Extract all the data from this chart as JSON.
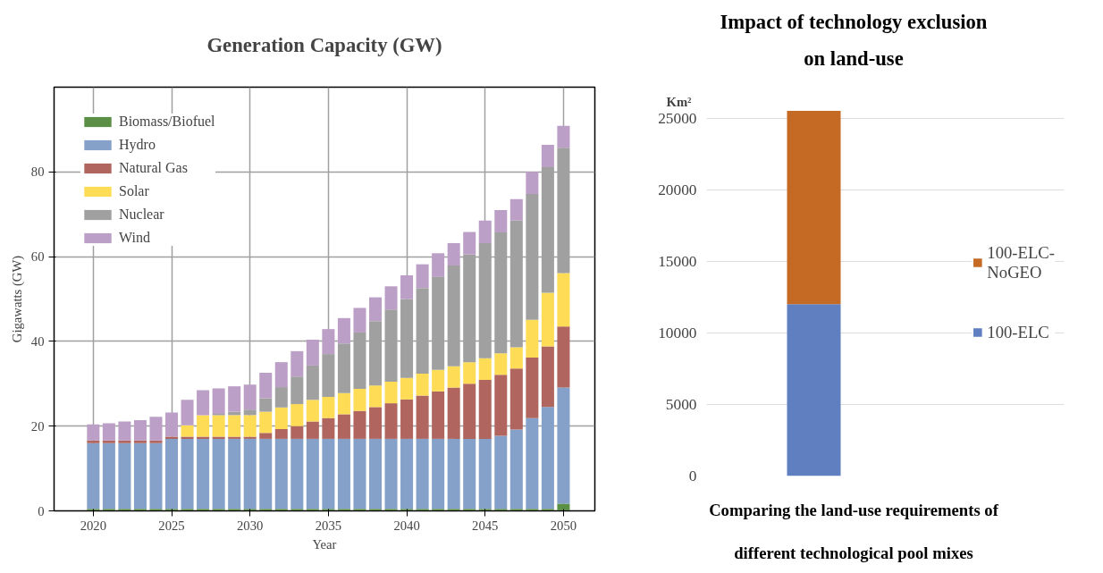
{
  "chart_data": [
    {
      "type": "bar",
      "title": "Generation Capacity (GW)",
      "xlabel": "Year",
      "ylabel": "Gigawatts (GW)",
      "stacked": true,
      "x": [
        2020,
        2021,
        2022,
        2023,
        2024,
        2025,
        2026,
        2027,
        2028,
        2029,
        2030,
        2031,
        2032,
        2033,
        2034,
        2035,
        2036,
        2037,
        2038,
        2039,
        2040,
        2041,
        2042,
        2043,
        2044,
        2045,
        2046,
        2047,
        2048,
        2049,
        2050
      ],
      "xlim": [
        2017.5,
        2052
      ],
      "xticks": [
        2020,
        2025,
        2030,
        2035,
        2040,
        2045,
        2050
      ],
      "ylim": [
        0,
        100
      ],
      "yticks": [
        0,
        20,
        40,
        60,
        80
      ],
      "grid": true,
      "legend": "top left",
      "series": [
        {
          "name": "Biomass/Biofuel",
          "color": "#5b8f45",
          "values": [
            0.5,
            0.5,
            0.5,
            0.5,
            0.5,
            0.5,
            0.5,
            0.5,
            0.5,
            0.5,
            0.5,
            0.5,
            0.5,
            0.5,
            0.5,
            0.5,
            0.5,
            0.5,
            0.5,
            0.5,
            0.5,
            0.5,
            0.5,
            0.5,
            0.5,
            0.5,
            0.5,
            0.5,
            0.5,
            0.5,
            1.7
          ]
        },
        {
          "name": "Hydro",
          "color": "#85a0c9",
          "values": [
            15.5,
            15.5,
            15.5,
            15.5,
            15.5,
            16.5,
            16.5,
            16.5,
            16.5,
            16.5,
            16.5,
            16.5,
            16.5,
            16.5,
            16.5,
            16.5,
            16.5,
            16.5,
            16.5,
            16.5,
            16.5,
            16.5,
            16.5,
            16.5,
            16.5,
            16.5,
            17.2,
            18.7,
            21.4,
            24.0,
            27.4
          ]
        },
        {
          "name": "Natural Gas",
          "color": "#b0665f",
          "values": [
            0.6,
            0.6,
            0.6,
            0.6,
            0.6,
            0.5,
            0.5,
            0.5,
            0.5,
            0.5,
            0.5,
            1.4,
            2.3,
            3.0,
            4.1,
            4.9,
            5.8,
            6.6,
            7.5,
            8.4,
            9.3,
            10.2,
            11.2,
            12.1,
            13.0,
            13.9,
            14.4,
            14.4,
            14.3,
            14.3,
            14.4
          ]
        },
        {
          "name": "Solar",
          "color": "#fedc56",
          "values": [
            0,
            0,
            0,
            0,
            0,
            0,
            2.7,
            5.1,
            5.1,
            5.1,
            5.1,
            5.0,
            5.1,
            5.2,
            5.1,
            5.0,
            5.0,
            5.2,
            5.1,
            5.1,
            5.1,
            5.2,
            5.1,
            5.0,
            5.1,
            5.1,
            5.1,
            5.0,
            8.9,
            12.7,
            12.6
          ]
        },
        {
          "name": "Nuclear",
          "color": "#a0a0a0",
          "values": [
            0,
            0,
            0,
            0,
            0,
            0,
            0,
            0,
            0.3,
            0.8,
            1.3,
            3.2,
            4.8,
            6.5,
            8.1,
            10.1,
            11.7,
            13.3,
            15.2,
            17.0,
            18.6,
            20.2,
            21.9,
            23.8,
            25.4,
            27.2,
            28.5,
            29.9,
            29.7,
            29.6,
            29.6
          ]
        },
        {
          "name": "Wind",
          "color": "#bc9fc6",
          "values": [
            3.8,
            4.1,
            4.5,
            4.8,
            5.6,
            5.7,
            6.0,
            5.9,
            6.0,
            6.0,
            5.9,
            6.0,
            5.9,
            6.0,
            6.1,
            5.9,
            6.0,
            5.8,
            5.6,
            5.5,
            5.6,
            5.6,
            5.6,
            5.3,
            5.3,
            5.3,
            5.3,
            5.1,
            5.2,
            5.3,
            5.2
          ]
        }
      ]
    },
    {
      "type": "bar",
      "title": "Impact of technology exclusion on land-use",
      "xlabel": "Comparing the land-use requirements of different technological pool mixes",
      "ylabel": "Km²",
      "stacked": true,
      "categories": [
        null
      ],
      "ylim": [
        0,
        25600
      ],
      "yticks": [
        0,
        5000,
        10000,
        15000,
        20000,
        25000
      ],
      "grid": "y",
      "legend": "right",
      "series": [
        {
          "name": "100-ELC",
          "color": "#5f7fc0",
          "values": [
            12000
          ]
        },
        {
          "name": "100-ELC-NoGEO",
          "color": "#c56a24",
          "values": [
            13500
          ]
        }
      ]
    }
  ]
}
